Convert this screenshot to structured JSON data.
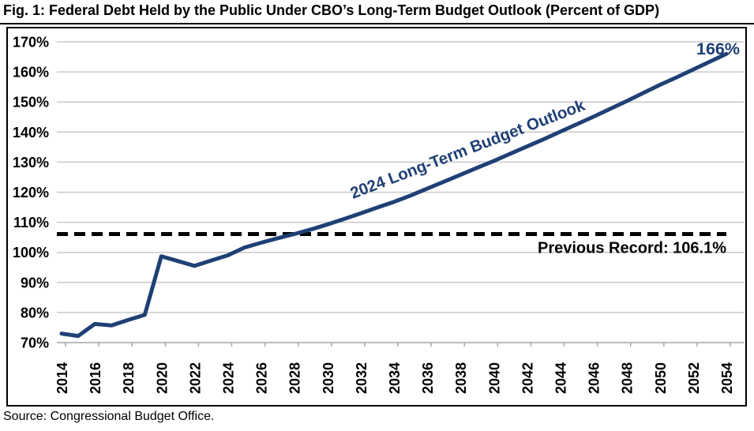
{
  "title": "Fig. 1: Federal Debt Held by the Public Under CBO’s Long-Term Budget Outlook (Percent of GDP)",
  "source_note": "Source: Congressional Budget Office.",
  "colors": {
    "series": "#1f4075",
    "record_line": "#000000",
    "gridline": "#c9c9c9",
    "axis": "#a6a6a6",
    "text": "#000000"
  },
  "chart_data": {
    "type": "line",
    "title": "Fig. 1: Federal Debt Held by the Public Under CBO’s Long-Term Budget Outlook (Percent of GDP)",
    "xlabel": "",
    "ylabel": "",
    "ylim": [
      70,
      170
    ],
    "ytick_step": 10,
    "y_tick_labels": [
      "170%",
      "160%",
      "150%",
      "140%",
      "130%",
      "120%",
      "110%",
      "100%",
      "90%",
      "80%",
      "70%"
    ],
    "x_tick_labels": [
      "2014",
      "2016",
      "2018",
      "2020",
      "2022",
      "2024",
      "2026",
      "2028",
      "2030",
      "2032",
      "2034",
      "2036",
      "2038",
      "2040",
      "2042",
      "2044",
      "2046",
      "2048",
      "2050",
      "2052",
      "2054"
    ],
    "grid": true,
    "legend_position": "none",
    "series": [
      {
        "name": "2024 Long-Term Budget Outlook",
        "years": [
          2014,
          2015,
          2016,
          2017,
          2018,
          2019,
          2020,
          2021,
          2022,
          2023,
          2024,
          2025,
          2026,
          2027,
          2028,
          2029,
          2030,
          2031,
          2032,
          2033,
          2034,
          2035,
          2036,
          2037,
          2038,
          2039,
          2040,
          2041,
          2042,
          2043,
          2044,
          2045,
          2046,
          2047,
          2048,
          2049,
          2050,
          2051,
          2052,
          2053,
          2054
        ],
        "values": [
          73.0,
          72.2,
          76.2,
          75.7,
          77.5,
          79.2,
          98.7,
          97.1,
          95.5,
          97.3,
          99.0,
          101.6,
          103.2,
          104.7,
          106.1,
          107.6,
          109.3,
          111.1,
          113.0,
          114.9,
          116.8,
          118.9,
          121.2,
          123.5,
          125.8,
          128.1,
          130.4,
          132.8,
          135.2,
          137.6,
          140.1,
          142.6,
          145.1,
          147.7,
          150.3,
          153.0,
          155.7,
          158.2,
          160.8,
          163.4,
          166.0
        ]
      }
    ],
    "annotation": {
      "text": "2024 Long-Term Budget Outlook"
    },
    "end_label": {
      "text": "166%",
      "value": 166
    },
    "reference_line": {
      "label": "Previous Record: 106.1%",
      "value": 106.1
    }
  }
}
